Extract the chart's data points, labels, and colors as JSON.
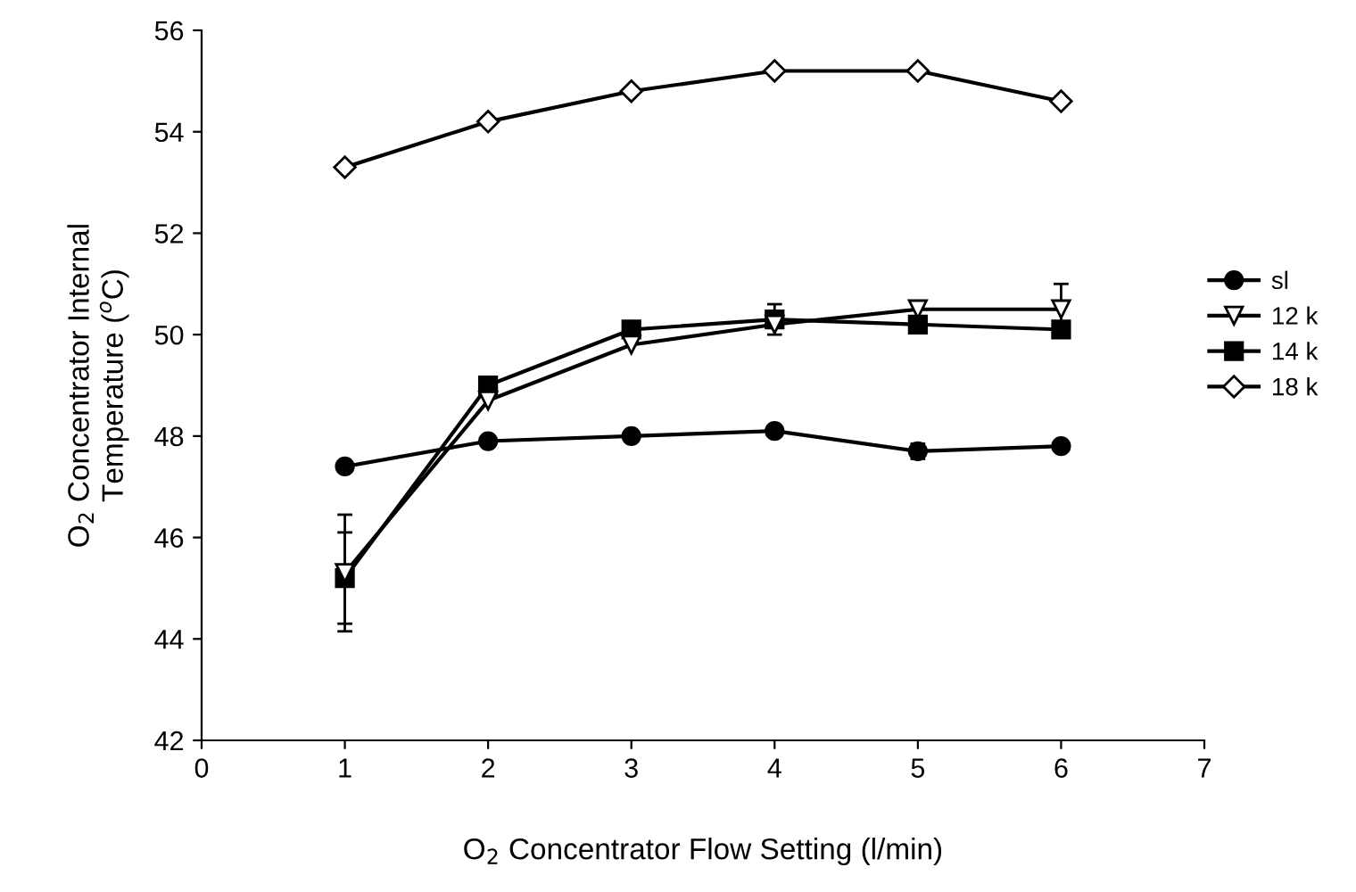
{
  "chart_data": {
    "type": "line",
    "xlabel": "O$_{2}$ Concentrator Flow Setting (l/min)",
    "ylabel": "O$_{2}$ Concentrator Internal\nTemperature ($^{o}$C)",
    "x": [
      1,
      2,
      3,
      4,
      5,
      6
    ],
    "xlim": [
      0,
      7
    ],
    "xticks": [
      0,
      1,
      2,
      3,
      4,
      5,
      6,
      7
    ],
    "ylim": [
      42,
      56
    ],
    "yticks": [
      42,
      44,
      46,
      48,
      50,
      52,
      54,
      56
    ],
    "grid": false,
    "legend": "right",
    "line_style": "solid",
    "series": [
      {
        "name": "sl",
        "color": "#000000",
        "marker": "circle",
        "values": [
          47.4,
          47.9,
          48.0,
          48.1,
          47.7,
          47.8
        ],
        "errors": [
          null,
          null,
          null,
          null,
          0.15,
          null
        ]
      },
      {
        "name": "12 k",
        "color": "#000000",
        "marker": "triangle",
        "values": [
          45.3,
          48.7,
          49.8,
          50.2,
          50.5,
          50.5
        ],
        "errors": [
          1.15,
          null,
          null,
          null,
          null,
          0.5
        ]
      },
      {
        "name": "14 k",
        "color": "#000000",
        "marker": "square",
        "values": [
          45.2,
          49.0,
          50.1,
          50.3,
          50.2,
          50.1
        ],
        "errors": [
          0.9,
          null,
          null,
          0.3,
          null,
          null
        ]
      },
      {
        "name": "18 k",
        "color": "#000000",
        "marker": "diamond",
        "values": [
          53.3,
          54.2,
          54.8,
          55.2,
          55.2,
          54.6
        ]
      }
    ]
  }
}
